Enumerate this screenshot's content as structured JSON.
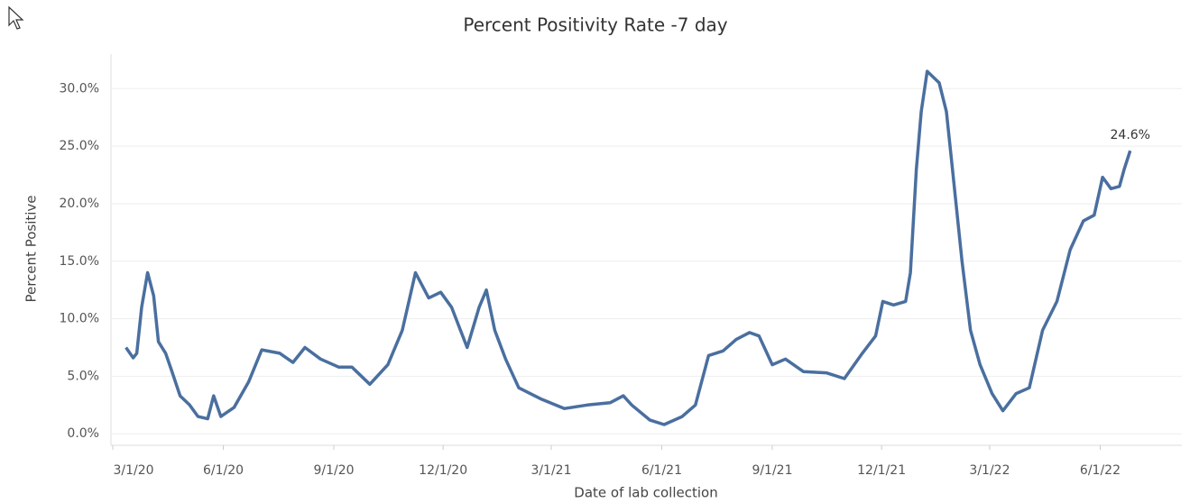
{
  "chart_data": {
    "type": "line",
    "title": "Percent Positivity Rate -7 day",
    "x_label": "Date of lab collection",
    "y_label": "Percent Positive",
    "x": [
      "2020-03-12",
      "2020-03-18",
      "2020-03-21",
      "2020-03-25",
      "2020-03-30",
      "2020-04-04",
      "2020-04-08",
      "2020-04-14",
      "2020-04-19",
      "2020-04-26",
      "2020-05-04",
      "2020-05-11",
      "2020-05-19",
      "2020-05-24",
      "2020-05-30",
      "2020-06-10",
      "2020-06-22",
      "2020-07-03",
      "2020-07-18",
      "2020-07-29",
      "2020-08-08",
      "2020-08-21",
      "2020-09-05",
      "2020-09-16",
      "2020-10-01",
      "2020-10-16",
      "2020-10-28",
      "2020-11-08",
      "2020-11-19",
      "2020-11-29",
      "2020-12-08",
      "2020-12-21",
      "2020-12-31",
      "2021-01-06",
      "2021-01-13",
      "2021-01-22",
      "2021-02-02",
      "2021-02-21",
      "2021-03-12",
      "2021-03-31",
      "2021-04-19",
      "2021-04-30",
      "2021-05-07",
      "2021-05-22",
      "2021-06-03",
      "2021-06-18",
      "2021-06-29",
      "2021-07-10",
      "2021-07-22",
      "2021-08-02",
      "2021-08-13",
      "2021-08-21",
      "2021-09-01",
      "2021-09-12",
      "2021-09-27",
      "2021-10-16",
      "2021-10-31",
      "2021-11-15",
      "2021-11-26",
      "2021-12-02",
      "2021-12-11",
      "2021-12-21",
      "2021-12-25",
      "2021-12-30",
      "2022-01-03",
      "2022-01-08",
      "2022-01-18",
      "2022-01-24",
      "2022-01-29",
      "2022-02-06",
      "2022-02-13",
      "2022-02-21",
      "2022-03-03",
      "2022-03-12",
      "2022-03-23",
      "2022-04-03",
      "2022-04-14",
      "2022-04-26",
      "2022-05-07",
      "2022-05-18",
      "2022-05-27",
      "2022-06-03",
      "2022-06-10",
      "2022-06-17",
      "2022-06-21",
      "2022-06-26"
    ],
    "series": [
      {
        "name": "Percent Positive",
        "color": "#4a6f9f",
        "values": [
          7.5,
          6.6,
          7,
          11,
          14,
          12,
          8,
          7,
          5.5,
          3.3,
          2.5,
          1.5,
          1.3,
          3.3,
          1.5,
          2.3,
          4.5,
          7.3,
          7,
          6.2,
          7.5,
          6.5,
          5.8,
          5.8,
          4.3,
          6,
          9,
          14,
          11.8,
          12.3,
          11,
          7.5,
          11,
          12.5,
          9,
          6.5,
          4,
          3,
          2.2,
          2.5,
          2.7,
          3.3,
          2.5,
          1.2,
          0.8,
          1.5,
          2.5,
          6.8,
          7.2,
          8.2,
          8.8,
          8.5,
          6,
          6.5,
          5.4,
          5.3,
          4.8,
          7,
          8.5,
          11.5,
          11.2,
          11.5,
          14,
          23,
          28,
          31.5,
          30.5,
          28,
          23,
          15,
          9,
          6,
          3.5,
          2,
          3.5,
          4,
          9,
          11.5,
          16,
          18.5,
          19,
          22.3,
          21.3,
          21.5,
          23,
          24.6
        ],
        "value_labels": [
          null,
          null,
          null,
          null,
          null,
          null,
          null,
          null,
          null,
          null,
          null,
          null,
          null,
          null,
          null,
          null,
          null,
          null,
          null,
          null,
          null,
          null,
          null,
          null,
          null,
          null,
          null,
          null,
          null,
          null,
          null,
          null,
          null,
          null,
          null,
          null,
          null,
          null,
          null,
          null,
          null,
          null,
          null,
          null,
          null,
          null,
          null,
          null,
          null,
          null,
          null,
          null,
          null,
          null,
          null,
          null,
          null,
          null,
          null,
          null,
          null,
          null,
          null,
          null,
          null,
          null,
          null,
          null,
          null,
          null,
          null,
          null,
          null,
          null,
          null,
          null,
          null,
          null,
          null,
          null,
          null,
          null,
          null,
          null,
          null,
          "24.6%"
        ]
      }
    ],
    "xlim": [
      "2020-03-01",
      "2022-08-08"
    ],
    "xticks": [
      {
        "value": "2020-03-01",
        "label": "3/1/20"
      },
      {
        "value": "2020-06-01",
        "label": "6/1/20"
      },
      {
        "value": "2020-09-01",
        "label": "9/1/20"
      },
      {
        "value": "2020-12-01",
        "label": "12/1/20"
      },
      {
        "value": "2021-03-01",
        "label": "3/1/21"
      },
      {
        "value": "2021-06-01",
        "label": "6/1/21"
      },
      {
        "value": "2021-09-01",
        "label": "9/1/21"
      },
      {
        "value": "2021-12-01",
        "label": "12/1/21"
      },
      {
        "value": "2022-03-01",
        "label": "3/1/22"
      },
      {
        "value": "2022-06-01",
        "label": "6/1/22"
      }
    ],
    "ylim": [
      -1,
      33
    ],
    "yticks": [
      {
        "value": 0,
        "label": "0.0%"
      },
      {
        "value": 5,
        "label": "5.0%"
      },
      {
        "value": 10,
        "label": "10.0%"
      },
      {
        "value": 15,
        "label": "15.0%"
      },
      {
        "value": 20,
        "label": "20.0%"
      },
      {
        "value": 25,
        "label": "25.0%"
      },
      {
        "value": 30,
        "label": "30.0%"
      }
    ],
    "grid": true
  }
}
